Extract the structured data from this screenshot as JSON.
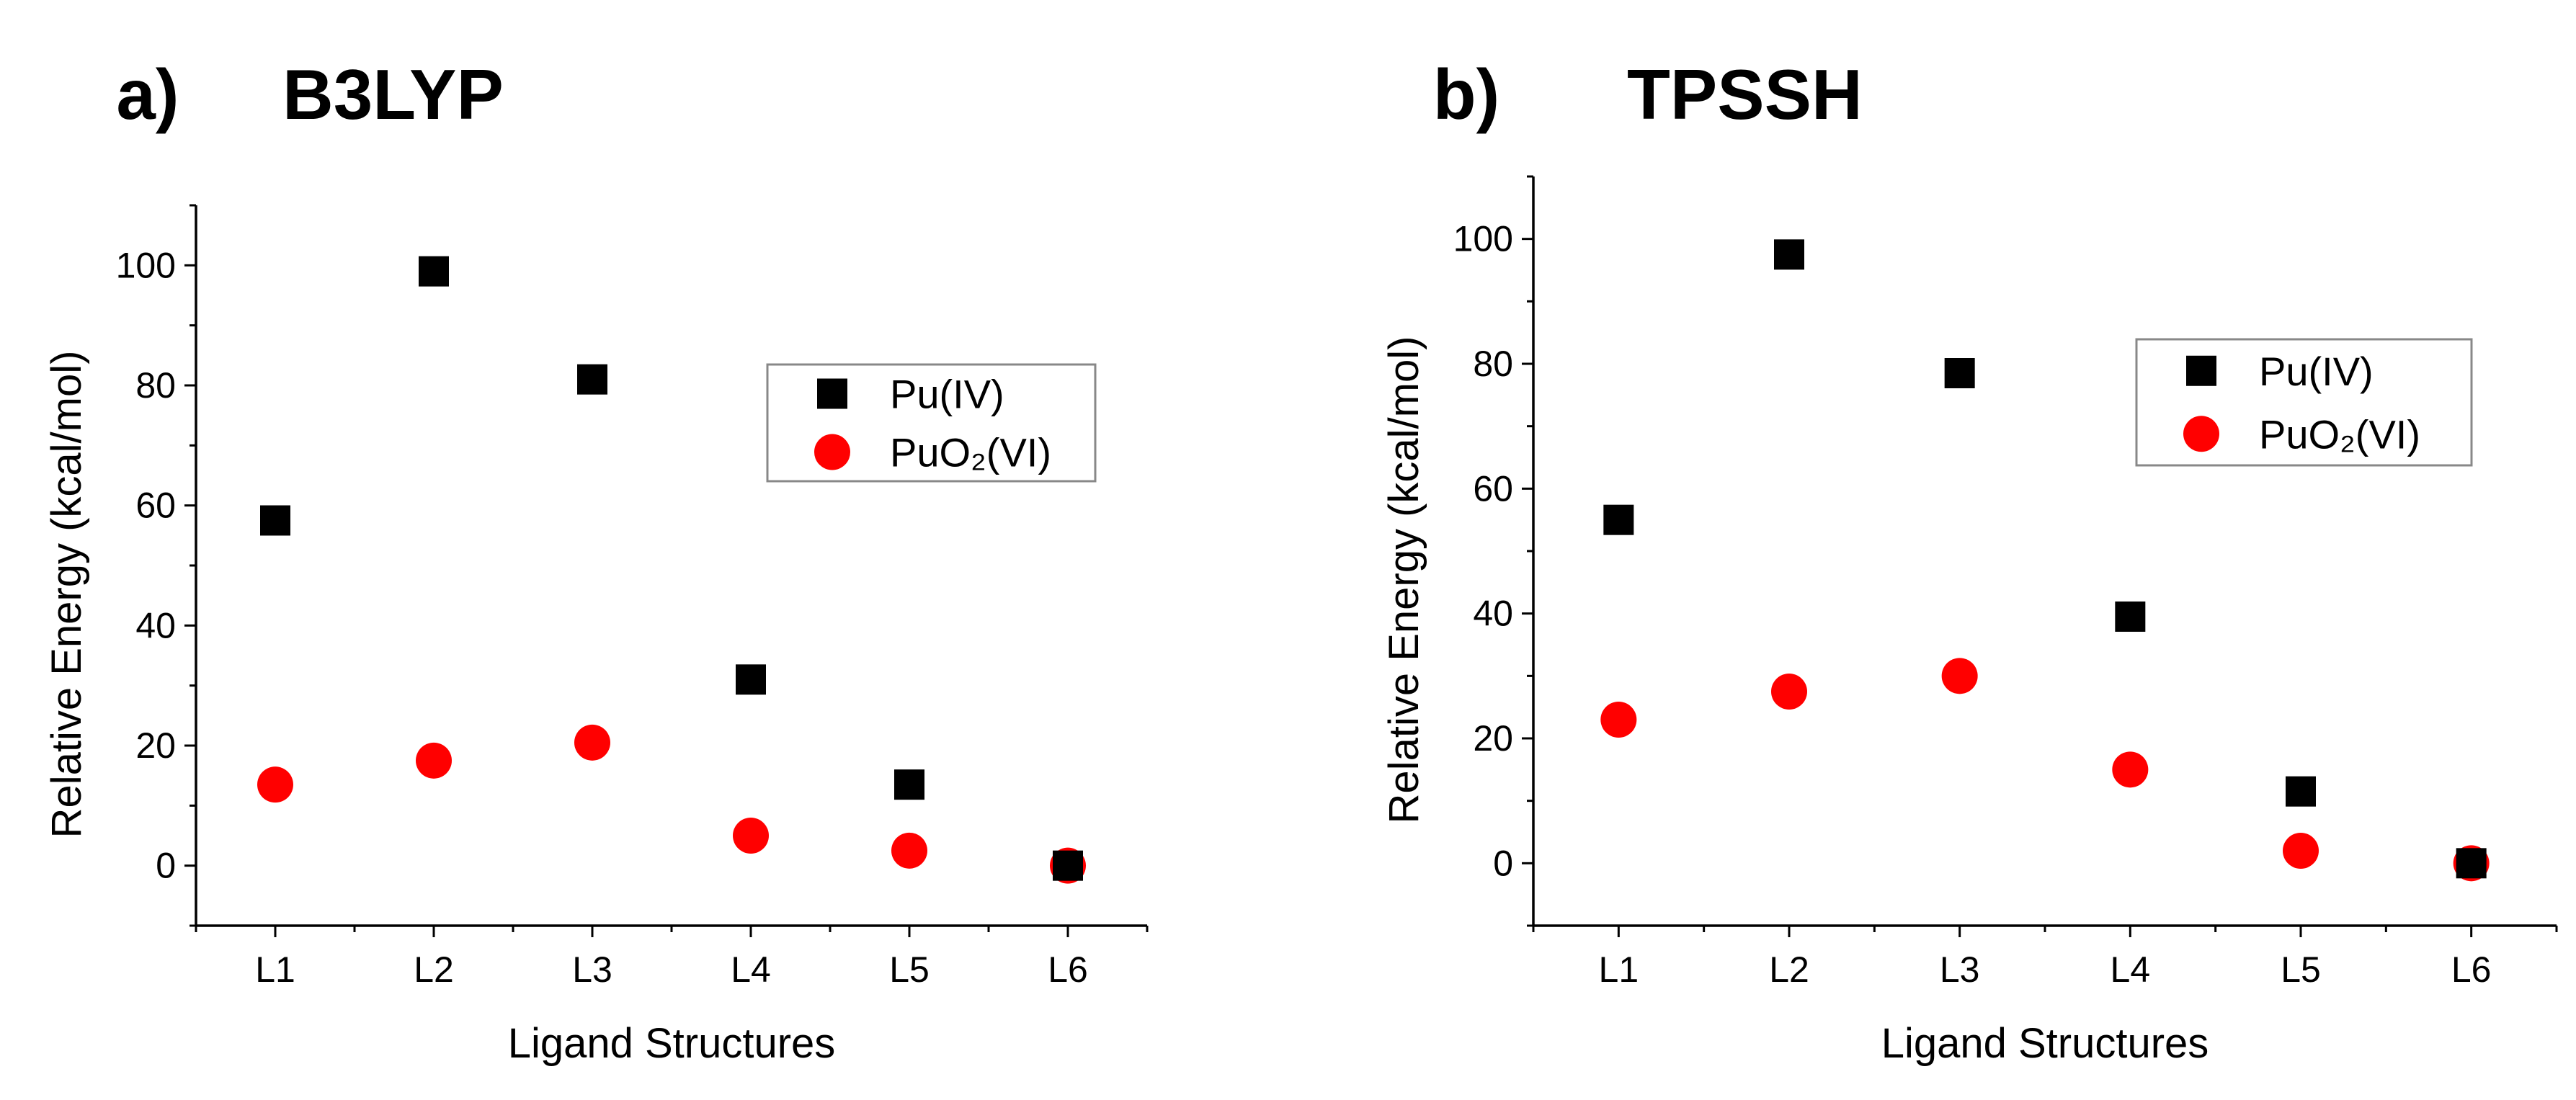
{
  "colors": {
    "pu4": "#000000",
    "puo2": "#ff0000",
    "legend_border": "#888888"
  },
  "chart_data": [
    {
      "type": "scatter",
      "panel_label": "a)",
      "title": "B3LYP",
      "xlabel": "Ligand Structures",
      "ylabel": "Relative Energy (kcal/mol)",
      "categories": [
        "L1",
        "L2",
        "L3",
        "L4",
        "L5",
        "L6"
      ],
      "ylim": [
        -10,
        110
      ],
      "yticks": [
        0,
        20,
        40,
        60,
        80,
        100
      ],
      "legend_position": "center-right",
      "series": [
        {
          "name": "Pu(IV)",
          "marker": "square",
          "values": [
            57.5,
            99.0,
            81.0,
            31.0,
            13.5,
            0.0
          ]
        },
        {
          "name": "PuO₂(VI)",
          "marker": "circle",
          "values": [
            13.5,
            17.5,
            20.5,
            5.0,
            2.5,
            0.0
          ]
        }
      ]
    },
    {
      "type": "scatter",
      "panel_label": "b)",
      "title": "TPSSH",
      "xlabel": "Ligand Structures",
      "ylabel": "Relative Energy (kcal/mol)",
      "categories": [
        "L1",
        "L2",
        "L3",
        "L4",
        "L5",
        "L6"
      ],
      "ylim": [
        -10,
        110
      ],
      "yticks": [
        0,
        20,
        40,
        60,
        80,
        100
      ],
      "legend_position": "top-right",
      "series": [
        {
          "name": "Pu(IV)",
          "marker": "square",
          "values": [
            55.0,
            97.5,
            78.5,
            39.5,
            11.5,
            0.0
          ]
        },
        {
          "name": "PuO₂(VI)",
          "marker": "circle",
          "values": [
            23.0,
            27.5,
            30.0,
            15.0,
            2.0,
            0.0
          ]
        }
      ]
    }
  ]
}
